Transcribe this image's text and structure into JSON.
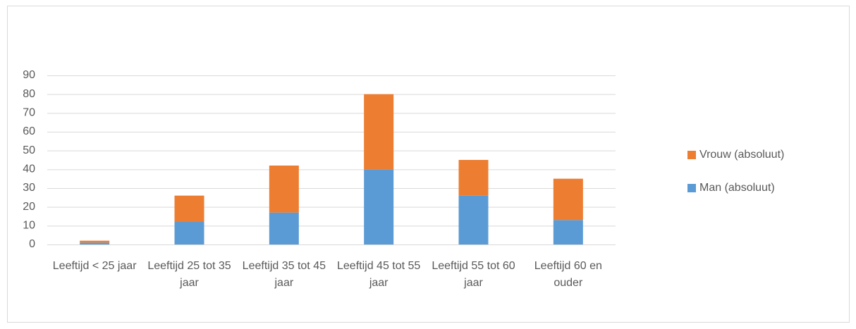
{
  "chart_data": {
    "type": "stacked_bar",
    "categories": [
      "Leeftijd < 25 jaar",
      "Leeftijd 25 tot 35 jaar",
      "Leeftijd 35 tot 45 jaar",
      "Leeftijd 45 tot 55 jaar",
      "Leeftijd 55 tot 60 jaar",
      "Leeftijd 60 en ouder"
    ],
    "series": [
      {
        "name": "Man (absoluut)",
        "color": "#5b9bd5",
        "values": [
          1,
          12,
          17,
          40,
          26,
          13
        ]
      },
      {
        "name": "Vrouw (absoluut)",
        "color": "#ed7d31",
        "values": [
          1,
          14,
          25,
          40,
          19,
          22
        ]
      }
    ],
    "ylim": [
      0,
      90
    ],
    "yticks": [
      0,
      10,
      20,
      30,
      40,
      50,
      60,
      70,
      80,
      90
    ],
    "grid": true,
    "legend": "right"
  }
}
